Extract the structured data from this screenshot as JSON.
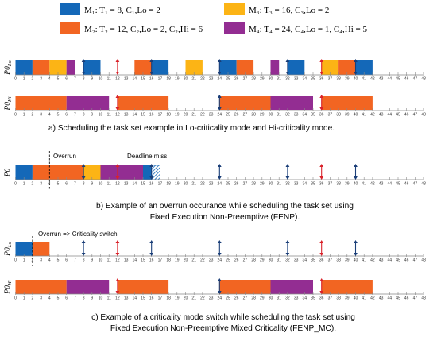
{
  "legend": [
    {
      "id": "M1",
      "text": "M₁: T₁ = 8, C₁,Lo = 2",
      "color": "#1468b8"
    },
    {
      "id": "M2",
      "text": "M₂: T₂ = 12, C₂,Lo = 2, C₂,Hi = 6",
      "color": "#f26522"
    },
    {
      "id": "M3",
      "text": "M₃: T₃ = 16, C₃,Lo = 2",
      "color": "#fcb415"
    },
    {
      "id": "M4",
      "text": "M₄: T₄ = 24, C₄,Lo = 1, C₄,Hi = 5",
      "color": "#932d92"
    }
  ],
  "arrow_colors": {
    "blue": "#1a3e78",
    "red": "#d9222a"
  },
  "time_axis": {
    "min": 0,
    "max": 48,
    "ticks": [
      "0",
      "1",
      "2",
      "3",
      "4",
      "5",
      "6",
      "7",
      "8",
      "9",
      "10",
      "11",
      "12",
      "13",
      "14",
      "15",
      "16",
      "17",
      "18",
      "19",
      "20",
      "21",
      "22",
      "23",
      "24",
      "25",
      "26",
      "27",
      "28",
      "29",
      "30",
      "31",
      "32",
      "33",
      "34",
      "35",
      "36",
      "37",
      "38",
      "39",
      "40",
      "41",
      "42",
      "43",
      "44",
      "45",
      "46",
      "47",
      "48"
    ]
  },
  "panels": [
    {
      "id": "a",
      "caption": "a)   Scheduling the task set example in Lo-criticality mode and Hi-criticality mode.",
      "rows": [
        {
          "label": "P0Lo",
          "label_main": "P0",
          "label_sub": "Lo",
          "blocks": [
            {
              "task": "M1",
              "start": 0,
              "end": 2
            },
            {
              "task": "M2",
              "start": 2,
              "end": 4
            },
            {
              "task": "M3",
              "start": 4,
              "end": 6
            },
            {
              "task": "M4",
              "start": 6,
              "end": 7
            },
            {
              "task": "M1",
              "start": 8,
              "end": 10
            },
            {
              "task": "M2",
              "start": 14,
              "end": 16
            },
            {
              "task": "M1",
              "start": 16,
              "end": 18
            },
            {
              "task": "M3",
              "start": 20,
              "end": 22
            },
            {
              "task": "M1",
              "start": 24,
              "end": 26
            },
            {
              "task": "M2",
              "start": 26,
              "end": 28
            },
            {
              "task": "M4",
              "start": 30,
              "end": 31
            },
            {
              "task": "M1",
              "start": 32,
              "end": 34
            },
            {
              "task": "M3",
              "start": 36,
              "end": 38
            },
            {
              "task": "M2",
              "start": 38,
              "end": 40
            },
            {
              "task": "M1",
              "start": 40,
              "end": 42
            }
          ],
          "arrows": [
            {
              "t": 8,
              "kind": "blue"
            },
            {
              "t": 12,
              "kind": "red"
            },
            {
              "t": 16,
              "kind": "blue"
            },
            {
              "t": 24,
              "kind": "blue"
            },
            {
              "t": 32,
              "kind": "blue"
            },
            {
              "t": 36,
              "kind": "red"
            },
            {
              "t": 40,
              "kind": "blue"
            }
          ]
        },
        {
          "label": "P0Hi",
          "label_main": "P0",
          "label_sub": "Hi",
          "blocks": [
            {
              "task": "M2",
              "start": 0,
              "end": 6
            },
            {
              "task": "M4",
              "start": 6,
              "end": 11
            },
            {
              "task": "M2",
              "start": 12,
              "end": 18
            },
            {
              "task": "M2",
              "start": 24,
              "end": 30
            },
            {
              "task": "M4",
              "start": 30,
              "end": 35
            },
            {
              "task": "M2",
              "start": 36,
              "end": 42
            }
          ],
          "arrows": [
            {
              "t": 12,
              "kind": "red"
            },
            {
              "t": 24,
              "kind": "blue"
            },
            {
              "t": 36,
              "kind": "red"
            }
          ]
        }
      ]
    },
    {
      "id": "b",
      "caption_lines": [
        "b) Example of an overrun occurance while scheduling the task set using",
        "Fixed Execution Non-Preemptive (FENP)."
      ],
      "annotations": {
        "overrun": "Overrun",
        "deadline_miss": "Deadline miss"
      },
      "rows": [
        {
          "label": "P0",
          "label_main": "P0",
          "label_sub": "",
          "overrun_t": 4,
          "blocks": [
            {
              "task": "M1",
              "start": 0,
              "end": 2
            },
            {
              "task": "M2",
              "start": 2,
              "end": 8
            },
            {
              "task": "M3",
              "start": 8,
              "end": 10
            },
            {
              "task": "M4",
              "start": 10,
              "end": 15
            },
            {
              "task": "M1",
              "start": 15,
              "end": 16
            },
            {
              "task": "M1",
              "start": 16,
              "end": 17,
              "hatched": true
            }
          ],
          "arrows": [
            {
              "t": 8,
              "kind": "blue"
            },
            {
              "t": 12,
              "kind": "red"
            },
            {
              "t": 16,
              "kind": "blue"
            },
            {
              "t": 24,
              "kind": "blue"
            },
            {
              "t": 32,
              "kind": "blue"
            },
            {
              "t": 36,
              "kind": "red"
            },
            {
              "t": 40,
              "kind": "blue"
            }
          ]
        }
      ]
    },
    {
      "id": "c",
      "caption_lines": [
        "c) Example of a criticality mode switch while scheduling the task set using",
        "Fixed Execution Non-Preemptive Mixed Criticality (FENP_MC)."
      ],
      "annotations": {
        "switch": "Overrun => Criticality switch"
      },
      "rows": [
        {
          "label": "P0Lo",
          "label_main": "P0",
          "label_sub": "Lo",
          "switch_t": 2,
          "blocks": [
            {
              "task": "M1",
              "start": 0,
              "end": 2
            },
            {
              "task": "M2",
              "start": 2,
              "end": 4
            }
          ],
          "arrows": [
            {
              "t": 8,
              "kind": "blue"
            },
            {
              "t": 12,
              "kind": "red"
            },
            {
              "t": 16,
              "kind": "blue"
            },
            {
              "t": 24,
              "kind": "blue"
            },
            {
              "t": 32,
              "kind": "blue"
            },
            {
              "t": 36,
              "kind": "red"
            },
            {
              "t": 40,
              "kind": "blue"
            }
          ]
        },
        {
          "label": "P0Hi",
          "label_main": "P0",
          "label_sub": "Hi",
          "blocks": [
            {
              "task": "M2",
              "start": 0,
              "end": 6
            },
            {
              "task": "M4",
              "start": 6,
              "end": 11
            },
            {
              "task": "M2",
              "start": 12,
              "end": 18
            },
            {
              "task": "M2",
              "start": 24,
              "end": 30
            },
            {
              "task": "M4",
              "start": 30,
              "end": 35
            },
            {
              "task": "M2",
              "start": 36,
              "end": 42
            }
          ],
          "arrows": [
            {
              "t": 12,
              "kind": "red"
            },
            {
              "t": 24,
              "kind": "blue"
            },
            {
              "t": 36,
              "kind": "red"
            }
          ]
        }
      ]
    }
  ]
}
